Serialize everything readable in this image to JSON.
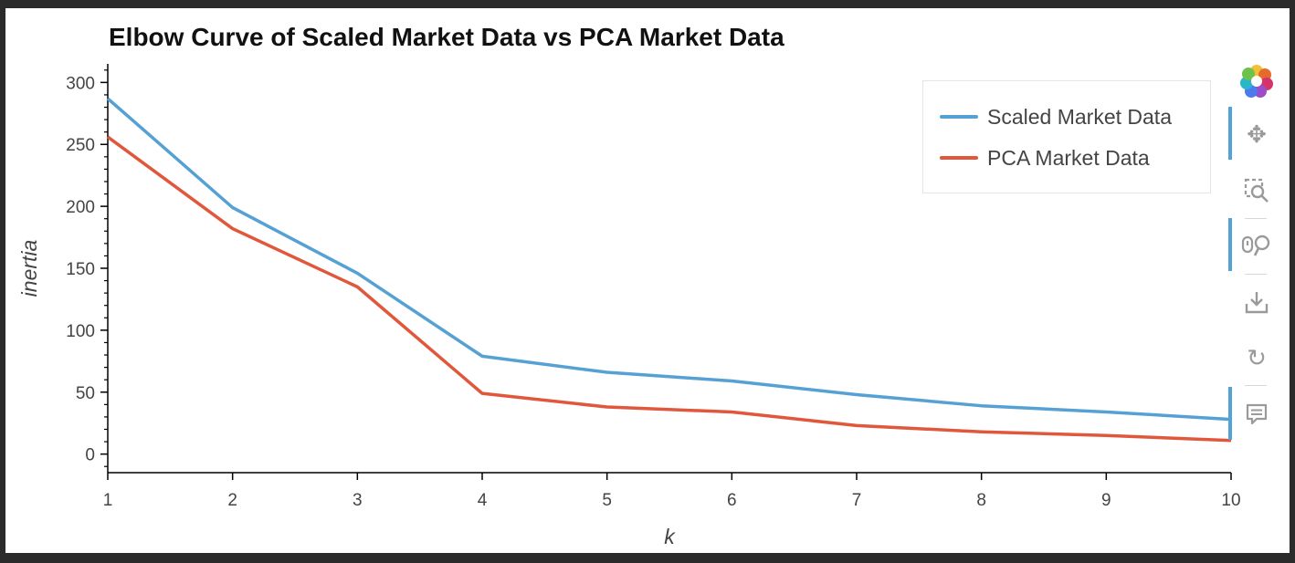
{
  "title": "Elbow Curve of Scaled Market Data vs PCA Market Data",
  "colors": {
    "scaled": "#56a1d4",
    "pca": "#e1573c",
    "axis": "#000000",
    "text": "#444444"
  },
  "chart_data": {
    "type": "line",
    "title": "Elbow Curve of Scaled Market Data vs PCA Market Data",
    "xlabel": "k",
    "ylabel": "inertia",
    "x": [
      1,
      2,
      3,
      4,
      5,
      6,
      7,
      8,
      9,
      10
    ],
    "xlim": [
      1,
      10
    ],
    "ylim": [
      -15,
      315
    ],
    "xticks": [
      "1",
      "2",
      "3",
      "4",
      "5",
      "6",
      "7",
      "8",
      "9",
      "10"
    ],
    "yticks": [
      "0",
      "50",
      "100",
      "150",
      "200",
      "250",
      "300"
    ],
    "grid": false,
    "legend_position": "top-right",
    "series": [
      {
        "name": "Scaled Market Data",
        "color": "#56a1d4",
        "values": [
          287,
          199,
          146,
          79,
          66,
          59,
          48,
          39,
          34,
          28
        ]
      },
      {
        "name": "PCA Market Data",
        "color": "#e1573c",
        "values": [
          256,
          182,
          135,
          49,
          38,
          34,
          23,
          18,
          15,
          11
        ]
      }
    ]
  },
  "toolbar": {
    "logo": "bokeh-logo-icon",
    "tools": [
      {
        "name": "pan-tool-icon",
        "glyph": "✥",
        "active": true
      },
      {
        "name": "box-zoom-tool-icon",
        "glyph": "⬚",
        "active": false
      },
      {
        "name": "wheel-zoom-tool-icon",
        "glyph": "⚲",
        "active": true
      },
      {
        "name": "save-tool-icon",
        "glyph": "⤓",
        "active": false
      },
      {
        "name": "reset-tool-icon",
        "glyph": "↻",
        "active": false
      },
      {
        "name": "hover-tool-icon",
        "glyph": "▤",
        "active": true
      }
    ]
  }
}
